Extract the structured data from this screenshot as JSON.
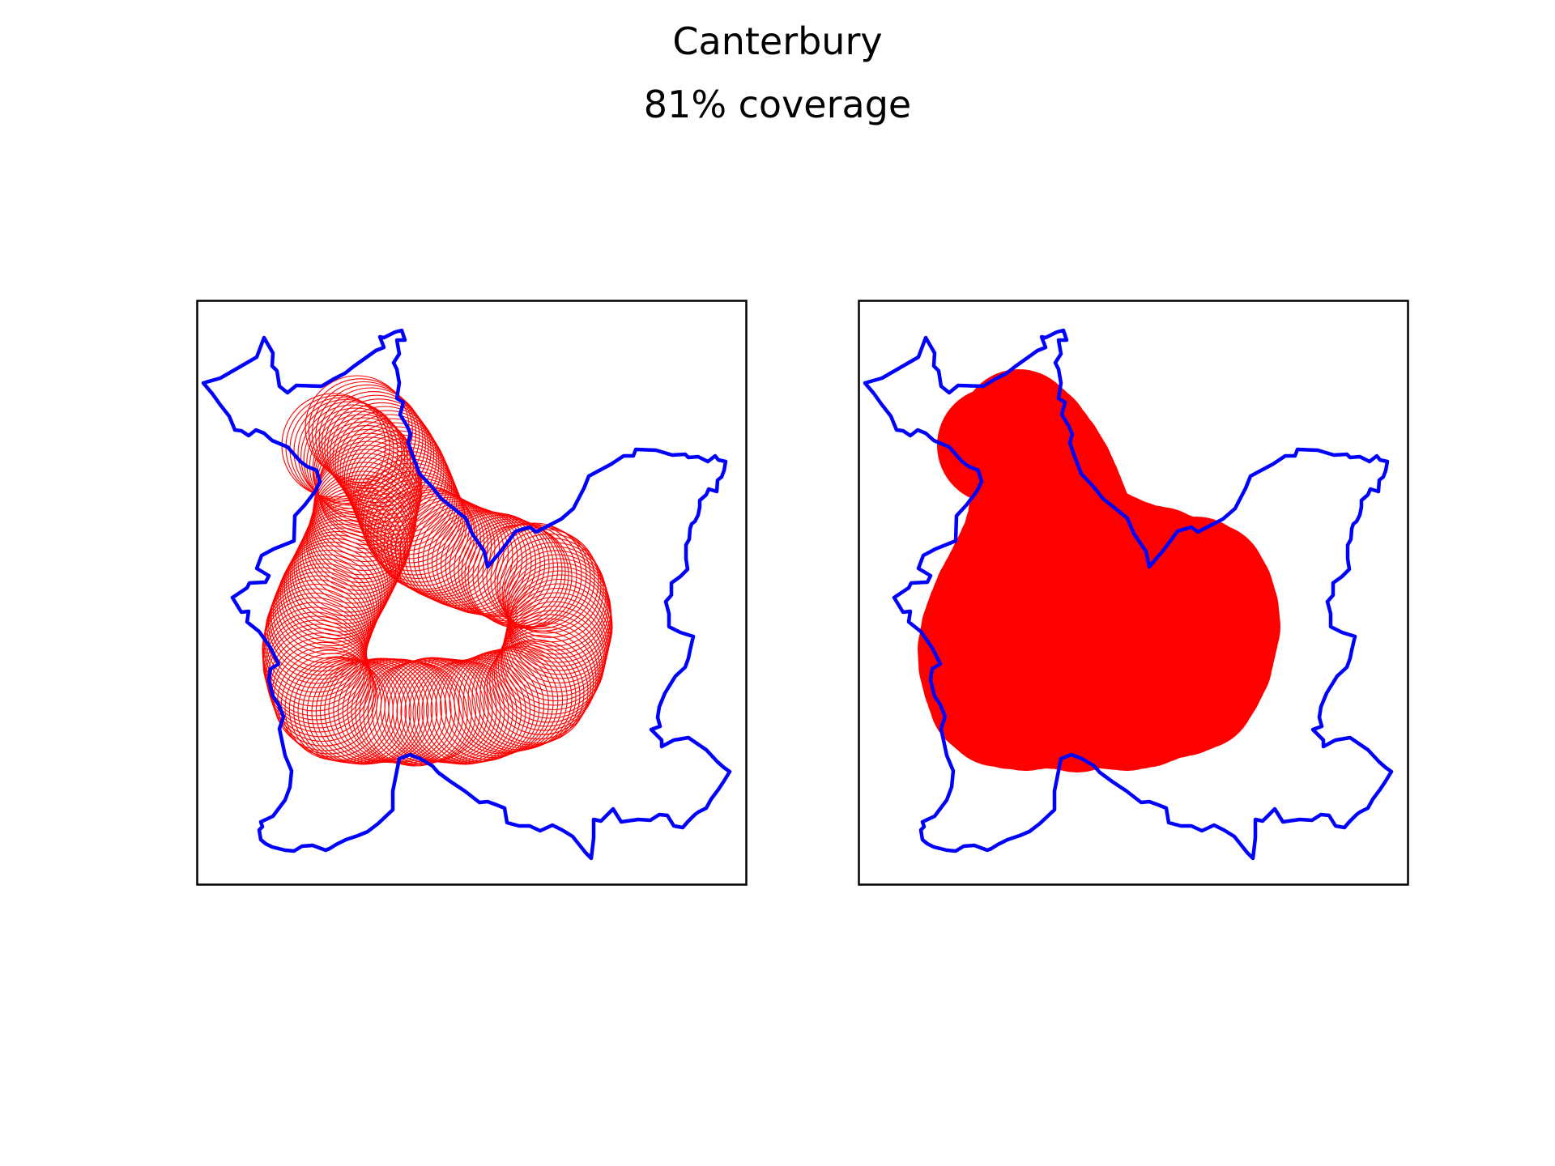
{
  "figure": {
    "title": "Canterbury",
    "subtitle": "81% coverage"
  },
  "colors": {
    "boundary": "#0000ff",
    "coverage": "#ff0000",
    "frame": "#000000",
    "background": "#ffffff"
  },
  "panels": [
    {
      "id": "left",
      "style": "circle outlines (stepped buffer along route)"
    },
    {
      "id": "right",
      "style": "filled coverage union"
    }
  ]
}
